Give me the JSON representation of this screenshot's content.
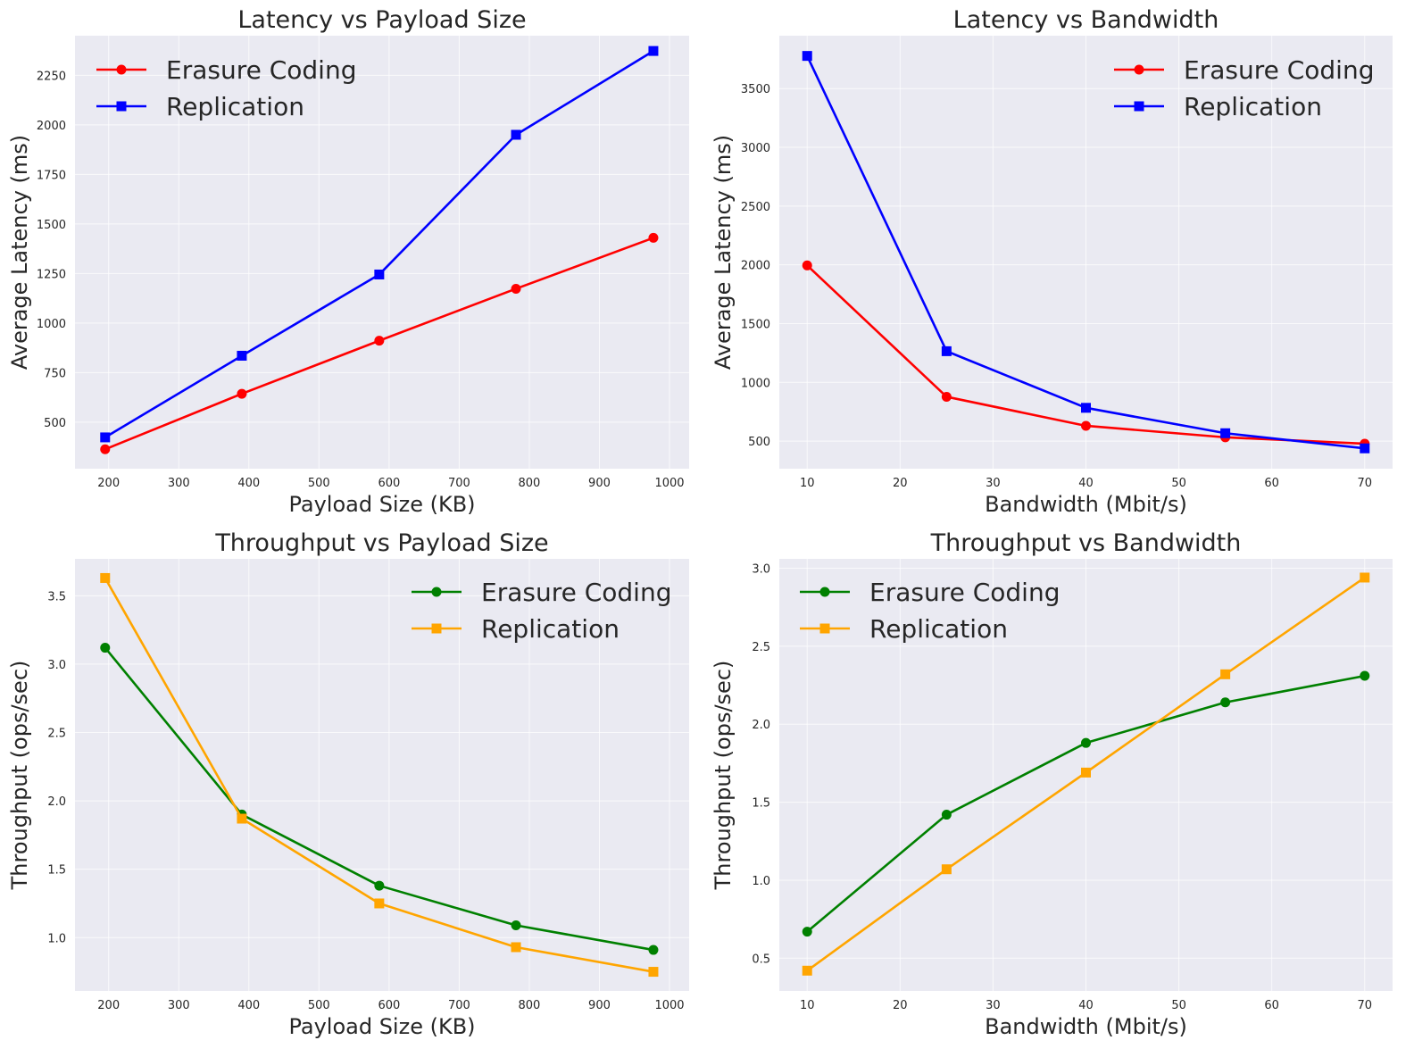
{
  "chart_data": [
    {
      "type": "line",
      "title": "Latency vs Payload Size",
      "xlabel": "Payload Size (KB)",
      "ylabel": "Average Latency (ms)",
      "xlim": [
        152,
        1028
      ],
      "ylim": [
        265,
        2450
      ],
      "xticks": [
        200,
        300,
        400,
        500,
        600,
        700,
        800,
        900,
        1000
      ],
      "yticks": [
        500,
        750,
        1000,
        1250,
        1500,
        1750,
        2000,
        2250
      ],
      "x": [
        195,
        390,
        586,
        781,
        977
      ],
      "legend_position": "top-left",
      "grid": true,
      "series": [
        {
          "name": "Erasure Coding",
          "color": "#ff0000",
          "marker": "circle",
          "values": [
            363,
            643,
            911,
            1173,
            1430
          ]
        },
        {
          "name": "Replication",
          "color": "#0000ff",
          "marker": "square",
          "values": [
            423,
            835,
            1245,
            1950,
            2373
          ]
        }
      ]
    },
    {
      "type": "line",
      "title": "Latency vs Bandwidth",
      "xlabel": "Bandwidth (Mbit/s)",
      "ylabel": "Average Latency (ms)",
      "xlim": [
        7,
        73
      ],
      "ylim": [
        265,
        3950
      ],
      "xticks": [
        10,
        20,
        30,
        40,
        50,
        60,
        70
      ],
      "yticks": [
        500,
        1000,
        1500,
        2000,
        2500,
        3000,
        3500
      ],
      "x": [
        10,
        25,
        40,
        55,
        70
      ],
      "legend_position": "top-right",
      "grid": true,
      "series": [
        {
          "name": "Erasure Coding",
          "color": "#ff0000",
          "marker": "circle",
          "values": [
            1995,
            877,
            630,
            532,
            478
          ]
        },
        {
          "name": "Replication",
          "color": "#0000ff",
          "marker": "square",
          "values": [
            3778,
            1265,
            783,
            567,
            438
          ]
        }
      ]
    },
    {
      "type": "line",
      "title": "Throughput vs Payload Size",
      "xlabel": "Payload Size (KB)",
      "ylabel": "Throughput (ops/sec)",
      "xlim": [
        152,
        1028
      ],
      "ylim": [
        0.61,
        3.77
      ],
      "xticks": [
        200,
        300,
        400,
        500,
        600,
        700,
        800,
        900,
        1000
      ],
      "yticks": [
        1.0,
        1.5,
        2.0,
        2.5,
        3.0,
        3.5
      ],
      "x": [
        195,
        390,
        586,
        781,
        977
      ],
      "legend_position": "top-right",
      "grid": true,
      "series": [
        {
          "name": "Erasure Coding",
          "color": "#008000",
          "marker": "circle",
          "values": [
            3.12,
            1.9,
            1.38,
            1.09,
            0.91
          ]
        },
        {
          "name": "Replication",
          "color": "#ffa500",
          "marker": "square",
          "values": [
            3.63,
            1.87,
            1.25,
            0.93,
            0.75
          ]
        }
      ]
    },
    {
      "type": "line",
      "title": "Throughput vs Bandwidth",
      "xlabel": "Bandwidth (Mbit/s)",
      "ylabel": "Throughput (ops/sec)",
      "xlim": [
        7,
        73
      ],
      "ylim": [
        0.29,
        3.06
      ],
      "xticks": [
        10,
        20,
        30,
        40,
        50,
        60,
        70
      ],
      "yticks": [
        0.5,
        1.0,
        1.5,
        2.0,
        2.5,
        3.0
      ],
      "x": [
        10,
        25,
        40,
        55,
        70
      ],
      "legend_position": "top-left",
      "grid": true,
      "series": [
        {
          "name": "Erasure Coding",
          "color": "#008000",
          "marker": "circle",
          "values": [
            0.67,
            1.42,
            1.88,
            2.14,
            2.31
          ]
        },
        {
          "name": "Replication",
          "color": "#ffa500",
          "marker": "square",
          "values": [
            0.42,
            1.07,
            1.69,
            2.32,
            2.94
          ]
        }
      ]
    }
  ]
}
